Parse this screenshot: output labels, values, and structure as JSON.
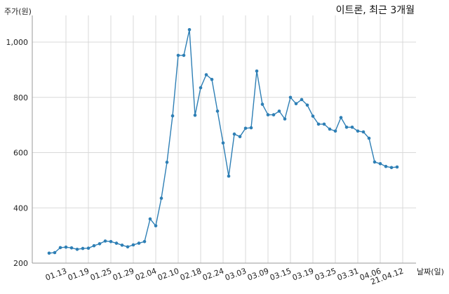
{
  "chart_data": {
    "type": "line",
    "title": "이트론, 최근 3개월",
    "ylabel": "주가(원)",
    "xlabel": "날짜(일)",
    "ylim": [
      200,
      1050
    ],
    "yticks": [
      200,
      400,
      600,
      800,
      1000
    ],
    "ytick_labels": [
      "200",
      "400",
      "600",
      "800",
      "1,000"
    ],
    "xtick_labels": [
      "01.13",
      "01.19",
      "01.25",
      "01.29",
      "02.04",
      "02.10",
      "02.18",
      "02.24",
      "03.03",
      "03.09",
      "03.15",
      "03.19",
      "03.25",
      "03.31",
      "04.06",
      "21.04.12"
    ],
    "xtick_indices": [
      3,
      7,
      11,
      15,
      19,
      23,
      27,
      31,
      35,
      39,
      43,
      47,
      51,
      55,
      59,
      63
    ],
    "grid": true,
    "series": [
      {
        "color": "#2e7fb5",
        "values": [
          236,
          238,
          256,
          258,
          255,
          250,
          253,
          254,
          263,
          270,
          280,
          278,
          272,
          265,
          259,
          266,
          272,
          278,
          360,
          335,
          435,
          565,
          733,
          952,
          952,
          1045,
          735,
          835,
          882,
          865,
          750,
          635,
          515,
          667,
          658,
          688,
          690,
          895,
          775,
          737,
          737,
          750,
          722,
          800,
          777,
          792,
          772,
          732,
          703,
          703,
          685,
          678,
          727,
          692,
          692,
          678,
          675,
          652,
          566,
          560,
          550,
          546,
          548
        ]
      }
    ]
  }
}
